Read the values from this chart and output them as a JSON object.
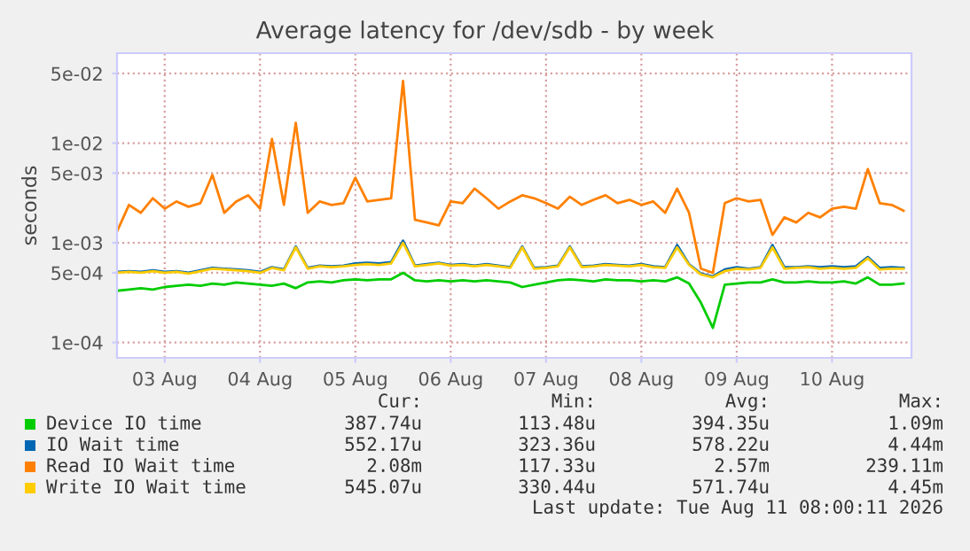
{
  "chart_data": {
    "type": "line",
    "title": "Average latency for /dev/sdb - by week",
    "ylabel": "seconds",
    "log": "y",
    "x": [
      "2026-08-03T00:00",
      "2026-08-03T03:00",
      "2026-08-03T06:00",
      "2026-08-03T09:00",
      "2026-08-03T12:00",
      "2026-08-03T15:00",
      "2026-08-03T18:00",
      "2026-08-03T21:00",
      "2026-08-04T00:00",
      "2026-08-04T03:00",
      "2026-08-04T06:00",
      "2026-08-04T09:00",
      "2026-08-04T12:00",
      "2026-08-04T15:00",
      "2026-08-04T18:00",
      "2026-08-04T21:00",
      "2026-08-05T00:00",
      "2026-08-05T03:00",
      "2026-08-05T06:00",
      "2026-08-05T09:00",
      "2026-08-05T12:00",
      "2026-08-05T15:00",
      "2026-08-05T18:00",
      "2026-08-05T21:00",
      "2026-08-06T00:00",
      "2026-08-06T03:00",
      "2026-08-06T06:00",
      "2026-08-06T09:00",
      "2026-08-06T12:00",
      "2026-08-06T15:00",
      "2026-08-06T18:00",
      "2026-08-06T21:00",
      "2026-08-07T00:00",
      "2026-08-07T03:00",
      "2026-08-07T06:00",
      "2026-08-07T09:00",
      "2026-08-07T12:00",
      "2026-08-07T15:00",
      "2026-08-07T18:00",
      "2026-08-07T21:00",
      "2026-08-08T00:00",
      "2026-08-08T03:00",
      "2026-08-08T06:00",
      "2026-08-08T09:00",
      "2026-08-08T12:00",
      "2026-08-08T15:00",
      "2026-08-08T18:00",
      "2026-08-08T21:00",
      "2026-08-09T00:00",
      "2026-08-09T03:00",
      "2026-08-09T06:00",
      "2026-08-09T09:00",
      "2026-08-09T12:00",
      "2026-08-09T15:00",
      "2026-08-09T18:00",
      "2026-08-09T21:00",
      "2026-08-10T00:00",
      "2026-08-10T03:00",
      "2026-08-10T06:00",
      "2026-08-10T09:00",
      "2026-08-10T12:00",
      "2026-08-10T15:00",
      "2026-08-10T18:00",
      "2026-08-10T21:00",
      "2026-08-11T00:00",
      "2026-08-11T03:00",
      "2026-08-11T06:00"
    ],
    "series": [
      {
        "name": "Device IO time",
        "color": "#00cc00",
        "values": [
          0.00033,
          0.00034,
          0.00035,
          0.00034,
          0.00036,
          0.00037,
          0.00038,
          0.00037,
          0.00039,
          0.00038,
          0.0004,
          0.00039,
          0.00038,
          0.00037,
          0.00039,
          0.00035,
          0.0004,
          0.00041,
          0.0004,
          0.00042,
          0.00043,
          0.00042,
          0.00043,
          0.00043,
          0.0005,
          0.00042,
          0.00041,
          0.00042,
          0.00041,
          0.00042,
          0.00041,
          0.00042,
          0.00041,
          0.0004,
          0.00036,
          0.00038,
          0.0004,
          0.00042,
          0.00043,
          0.00042,
          0.00041,
          0.00043,
          0.00042,
          0.00042,
          0.00041,
          0.00042,
          0.00041,
          0.00045,
          0.00039,
          0.00025,
          0.00014,
          0.00038,
          0.00039,
          0.0004,
          0.0004,
          0.00043,
          0.0004,
          0.0004,
          0.00041,
          0.0004,
          0.0004,
          0.00041,
          0.00039,
          0.00045,
          0.00038,
          0.00038,
          0.00039
        ]
      },
      {
        "name": "IO Wait time",
        "color": "#0066b3",
        "values": [
          0.00051,
          0.00052,
          0.00051,
          0.00053,
          0.00051,
          0.00052,
          0.0005,
          0.00053,
          0.00056,
          0.00055,
          0.00054,
          0.00053,
          0.00051,
          0.00057,
          0.00054,
          0.00092,
          0.00056,
          0.00059,
          0.00058,
          0.00059,
          0.00062,
          0.00063,
          0.00062,
          0.00064,
          0.00105,
          0.00059,
          0.00061,
          0.00063,
          0.0006,
          0.00061,
          0.00059,
          0.00061,
          0.00059,
          0.00057,
          0.00092,
          0.00056,
          0.00057,
          0.00059,
          0.00092,
          0.00058,
          0.00059,
          0.00061,
          0.0006,
          0.00059,
          0.00061,
          0.00058,
          0.00057,
          0.00095,
          0.00061,
          0.00049,
          0.00046,
          0.00054,
          0.00057,
          0.00055,
          0.00057,
          0.00095,
          0.00057,
          0.00057,
          0.00058,
          0.00057,
          0.00058,
          0.00057,
          0.00058,
          0.00072,
          0.00056,
          0.00057,
          0.00056
        ]
      },
      {
        "name": "Read IO Wait time",
        "color": "#ff8000",
        "values": [
          0.0013,
          0.0024,
          0.002,
          0.0028,
          0.0022,
          0.0026,
          0.0023,
          0.0025,
          0.0048,
          0.002,
          0.0026,
          0.003,
          0.0022,
          0.011,
          0.0024,
          0.016,
          0.002,
          0.0026,
          0.0024,
          0.0025,
          0.0045,
          0.0026,
          0.0027,
          0.0028,
          0.042,
          0.0017,
          0.0016,
          0.0015,
          0.0026,
          0.0025,
          0.0035,
          0.0028,
          0.0022,
          0.0026,
          0.003,
          0.0028,
          0.0025,
          0.0022,
          0.0029,
          0.0024,
          0.0027,
          0.003,
          0.0025,
          0.0027,
          0.0024,
          0.0026,
          0.002,
          0.0035,
          0.002,
          0.00055,
          0.0005,
          0.0025,
          0.0028,
          0.0026,
          0.0027,
          0.0012,
          0.0018,
          0.0016,
          0.002,
          0.0018,
          0.0022,
          0.0023,
          0.0022,
          0.0055,
          0.0025,
          0.0024,
          0.0021
        ]
      },
      {
        "name": "Write IO Wait time",
        "color": "#ffcc00",
        "values": [
          0.0005,
          0.00051,
          0.0005,
          0.00052,
          0.0005,
          0.00051,
          0.00049,
          0.00052,
          0.00055,
          0.00054,
          0.00053,
          0.00052,
          0.0005,
          0.00056,
          0.00053,
          0.0009,
          0.00055,
          0.00058,
          0.00057,
          0.00058,
          0.0006,
          0.00061,
          0.0006,
          0.00062,
          0.001,
          0.00058,
          0.0006,
          0.00062,
          0.00059,
          0.0006,
          0.00058,
          0.0006,
          0.00058,
          0.00056,
          0.0009,
          0.00055,
          0.00056,
          0.00058,
          0.0009,
          0.00057,
          0.00058,
          0.0006,
          0.00059,
          0.00058,
          0.0006,
          0.00057,
          0.00056,
          0.0009,
          0.0006,
          0.00048,
          0.00045,
          0.00052,
          0.00055,
          0.00054,
          0.00056,
          0.0009,
          0.00055,
          0.00056,
          0.00057,
          0.00055,
          0.00056,
          0.00055,
          0.00056,
          0.0007,
          0.00054,
          0.00055,
          0.00055
        ]
      }
    ],
    "xlim": [
      "2026-08-03T00:00",
      "2026-08-11T08:00"
    ],
    "xticks": [
      {
        "value": "2026-08-03T12:00",
        "label": "03 Aug"
      },
      {
        "value": "2026-08-04T12:00",
        "label": "04 Aug"
      },
      {
        "value": "2026-08-05T12:00",
        "label": "05 Aug"
      },
      {
        "value": "2026-08-06T12:00",
        "label": "06 Aug"
      },
      {
        "value": "2026-08-07T12:00",
        "label": "07 Aug"
      },
      {
        "value": "2026-08-08T12:00",
        "label": "08 Aug"
      },
      {
        "value": "2026-08-09T12:00",
        "label": "09 Aug"
      },
      {
        "value": "2026-08-10T12:00",
        "label": "10 Aug"
      }
    ],
    "ylim": [
      7e-05,
      0.08
    ],
    "yticks": [
      {
        "value": 0.0001,
        "label": "1e-04"
      },
      {
        "value": 0.0005,
        "label": "5e-04"
      },
      {
        "value": 0.001,
        "label": "1e-03"
      },
      {
        "value": 0.005,
        "label": "5e-03"
      },
      {
        "value": 0.01,
        "label": "1e-02"
      },
      {
        "value": 0.05,
        "label": "5e-02"
      }
    ],
    "grid": true,
    "legend": "bottom",
    "marker": "none",
    "line_style": "solid",
    "annotations": [
      "Cur:",
      "Min:",
      "Avg:",
      "Max:",
      "387.74u",
      "113.48u",
      "394.35u",
      "1.09m",
      "552.17u",
      "323.36u",
      "578.22u",
      "4.44m",
      "2.08m",
      "117.33u",
      "2.57m",
      "239.11m",
      "545.07u",
      "330.44u",
      "571.74u",
      "4.45m",
      "Last update: Tue Aug 11 08:00:11 2026"
    ]
  }
}
